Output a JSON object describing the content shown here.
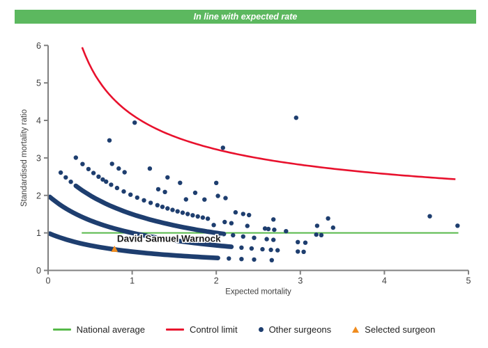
{
  "banner": {
    "text": "In line with expected rate",
    "bg_color": "#5cb85f",
    "text_color": "#ffffff"
  },
  "chart_data": {
    "type": "scatter",
    "title": "",
    "xlabel": "Expected mortality",
    "ylabel": "Standardised mortality ratio",
    "xlim": [
      0,
      5
    ],
    "ylim": [
      0,
      6
    ],
    "x_ticks": [
      0,
      1,
      2,
      3,
      4,
      5
    ],
    "y_ticks": [
      0,
      1,
      2,
      3,
      4,
      5,
      6
    ],
    "grid": false,
    "axis_color": "#808080",
    "tick_label_color": "#3f3f3f",
    "national_average": {
      "value": 1,
      "x_start": 0.4,
      "x_end": 4.88,
      "color": "#56b949"
    },
    "control_limit": {
      "formula": "smr = 1 + 3.15 / sqrt(expected_mortality)",
      "x_start": 0.405,
      "x_end": 4.88,
      "y_start": 5.95,
      "y_end": 2.42,
      "color": "#e8112d"
    },
    "other_surgeons": {
      "color": "#1e3e6f",
      "band_model": "smr = observed_deaths / (1 + expected_mortality)",
      "bands": [
        {
          "observed": 1,
          "solid": [
            0.02,
            2.05
          ],
          "dots": [
            2.15,
            2.3,
            2.45,
            2.66
          ]
        },
        {
          "observed": 2,
          "solid": [
            0.02,
            2.2
          ],
          "dots": [
            2.3,
            2.42,
            2.55,
            2.65,
            2.73,
            2.97,
            3.04
          ]
        },
        {
          "observed": 3,
          "solid": [
            0.33,
            2.1
          ],
          "dots": [
            0.15,
            0.21,
            0.27,
            2.2,
            2.32,
            2.45,
            2.6,
            2.68,
            2.97,
            3.06
          ]
        },
        {
          "observed": 4,
          "dots": [
            0.33,
            0.41,
            0.48,
            0.54,
            0.6,
            0.65,
            0.69,
            0.75,
            0.82,
            0.9,
            0.98,
            1.06,
            1.14,
            1.22,
            1.3,
            1.36,
            1.42,
            1.48,
            1.54,
            1.6,
            1.66,
            1.72,
            1.78,
            1.84,
            1.9,
            2.1,
            2.18,
            2.37,
            2.58,
            2.62,
            2.69,
            2.83,
            3.19,
            3.25
          ]
        },
        {
          "observed": 5,
          "dots": [
            0.76,
            0.84,
            0.91,
            1.31,
            1.39,
            1.64,
            2.23,
            2.32,
            2.39,
            2.68,
            3.2,
            3.39
          ]
        },
        {
          "observed": 6,
          "dots": [
            0.73,
            1.21,
            1.42,
            1.57,
            2.02,
            2.11,
            3.33
          ]
        },
        {
          "observed": 7,
          "dots": [
            2.0,
            4.87
          ]
        },
        {
          "observed": 8,
          "dots": [
            1.03,
            4.54
          ]
        }
      ],
      "extra_points": [
        [
          2.95,
          4.07
        ],
        [
          2.08,
          3.27
        ],
        [
          1.75,
          2.07
        ],
        [
          1.86,
          1.89
        ],
        [
          1.97,
          1.21
        ]
      ]
    },
    "selected_surgeon": {
      "name": "David Samuel Warnock",
      "x": 0.79,
      "y": 0.56,
      "color": "#f08c1e",
      "label_x": 0.82,
      "label_y": 0.8
    }
  },
  "legend": {
    "items": [
      {
        "label": "National average",
        "marker": "line",
        "color": "#56b949"
      },
      {
        "label": "Control limit",
        "marker": "line",
        "color": "#e8112d"
      },
      {
        "label": "Other surgeons",
        "marker": "dot",
        "color": "#1e3e6f"
      },
      {
        "label": "Selected surgeon",
        "marker": "triangle",
        "color": "#f08c1e"
      }
    ]
  }
}
